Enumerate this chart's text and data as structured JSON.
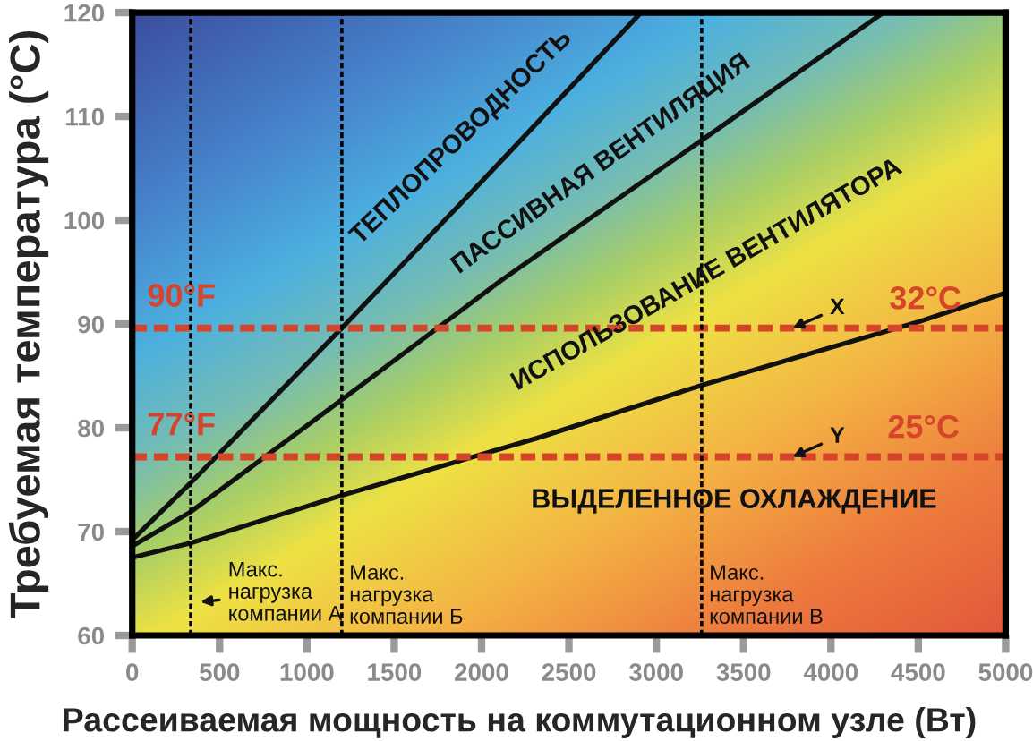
{
  "chart_data": {
    "type": "line",
    "xlabel": "Рассеиваемая мощность на коммутационном узле (Вт)",
    "ylabel": "Требуемая температура (°C)",
    "xlim": [
      0,
      5000
    ],
    "xticks": [
      0,
      500,
      1000,
      1500,
      2000,
      2500,
      3000,
      3500,
      4000,
      4500,
      5000
    ],
    "ylim": [
      60,
      120
    ],
    "yticks": [
      60,
      70,
      80,
      90,
      100,
      110,
      120
    ],
    "series": [
      {
        "color": "#111111",
        "x": [
          0,
          335,
          1200,
          2112,
          2912
        ],
        "values": [
          69.2,
          74.7,
          89.6,
          105.7,
          120
        ]
      },
      {
        "color": "#111111",
        "x": [
          0,
          335,
          1200,
          2112,
          3260,
          4300
        ],
        "values": [
          68.6,
          71.9,
          82.7,
          94.2,
          107.7,
          120
        ]
      },
      {
        "color": "#111111",
        "x": [
          0,
          335,
          1200,
          2317,
          3260,
          4500,
          5000
        ],
        "values": [
          67.5,
          68.9,
          73.5,
          79.0,
          84.1,
          90.2,
          93.0
        ]
      }
    ],
    "ref_lines": [
      {
        "axis": "y",
        "value": 89.6,
        "label": "90°F",
        "color": "#d6452a",
        "line_style": "dashed"
      },
      {
        "axis": "y",
        "value": 77.2,
        "label": "77°F",
        "color": "#d6452a",
        "line_style": "dashed"
      },
      {
        "axis": "x",
        "value": 335,
        "label": "Макс.\nнагрузка\nкомпании А",
        "color": "#000000",
        "line_style": "dotted"
      },
      {
        "axis": "x",
        "value": 1200,
        "label": "Макс.\nнагрузка\nкомпании Б",
        "color": "#000000",
        "line_style": "dotted"
      },
      {
        "axis": "x",
        "value": 3260,
        "label": "Макс.\nнагрузка\nкомпании В",
        "color": "#000000",
        "line_style": "dotted"
      }
    ],
    "annotations": [
      "ТЕПЛОПРОВОДНОСТЬ",
      "ПАССИВНАЯ ВЕНТИЛЯЦИЯ",
      "ИСПОЛЬЗОВАНИЕ ВЕНТИЛЯТОРА",
      "ВЫДЕЛЕННОЕ ОХЛАЖДЕНИЕ",
      {
        "text": "32°C",
        "x": 4540,
        "y": 89.6
      },
      {
        "text": "25°C",
        "x": 4530,
        "y": 77.2
      },
      {
        "text": "X",
        "x": 3780,
        "y": 89.6
      },
      {
        "text": "Y",
        "x": 3780,
        "y": 77.2
      }
    ]
  }
}
